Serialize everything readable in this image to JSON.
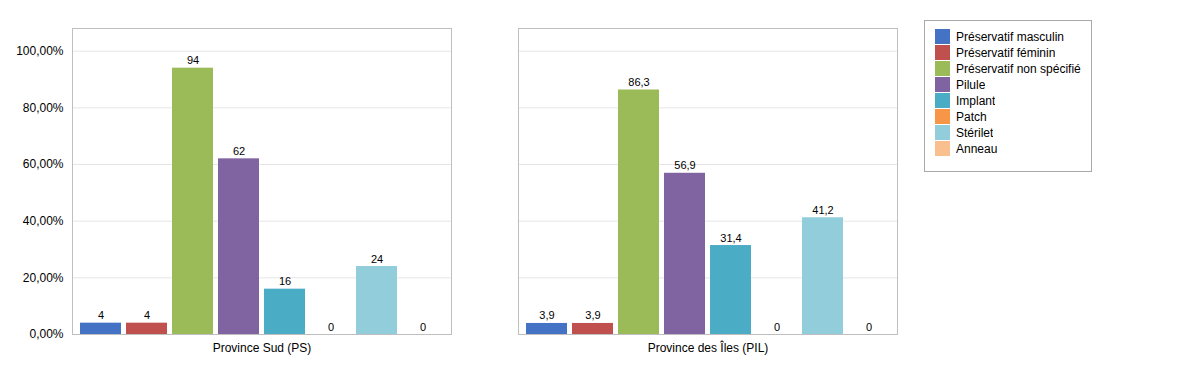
{
  "chart_data": {
    "type": "bar",
    "categories": [
      "Province Sud (PS)",
      "Province des Îles (PIL)"
    ],
    "series": [
      {
        "name": "Préservatif masculin",
        "color": "#4472c4",
        "values": [
          4.0,
          3.9
        ],
        "value_labels": [
          "4",
          "3,9"
        ]
      },
      {
        "name": "Préservatif féminin",
        "color": "#c0504d",
        "values": [
          4.0,
          3.9
        ],
        "value_labels": [
          "4",
          "3,9"
        ]
      },
      {
        "name": "Préservatif non spécifié",
        "color": "#9bbb59",
        "values": [
          94.0,
          86.3
        ],
        "value_labels": [
          "94",
          "86,3"
        ]
      },
      {
        "name": "Pilule",
        "color": "#8064a2",
        "values": [
          62.0,
          56.9
        ],
        "value_labels": [
          "62",
          "56,9"
        ]
      },
      {
        "name": "Implant",
        "color": "#4bacc6",
        "values": [
          16.0,
          31.4
        ],
        "value_labels": [
          "16",
          "31,4"
        ]
      },
      {
        "name": "Patch",
        "color": "#f79646",
        "values": [
          0.0,
          0.0
        ],
        "value_labels": [
          "0",
          "0"
        ]
      },
      {
        "name": "Stérilet",
        "color": "#92cddc",
        "values": [
          24.0,
          41.2
        ],
        "value_labels": [
          "24",
          "41,2"
        ]
      },
      {
        "name": "Anneau",
        "color": "#fabf8f",
        "values": [
          0.0,
          0.0
        ],
        "value_labels": [
          "0",
          "0"
        ]
      }
    ],
    "ylim": [
      0,
      108
    ],
    "yticks": [
      {
        "value": 0,
        "label": "0,00%"
      },
      {
        "value": 20,
        "label": "20,00%"
      },
      {
        "value": 40,
        "label": "40,00%"
      },
      {
        "value": 60,
        "label": "60,00%"
      },
      {
        "value": 80,
        "label": "80,00%"
      },
      {
        "value": 100,
        "label": "100,00%"
      }
    ],
    "grid": true,
    "legend": "right",
    "data_labels": true
  }
}
